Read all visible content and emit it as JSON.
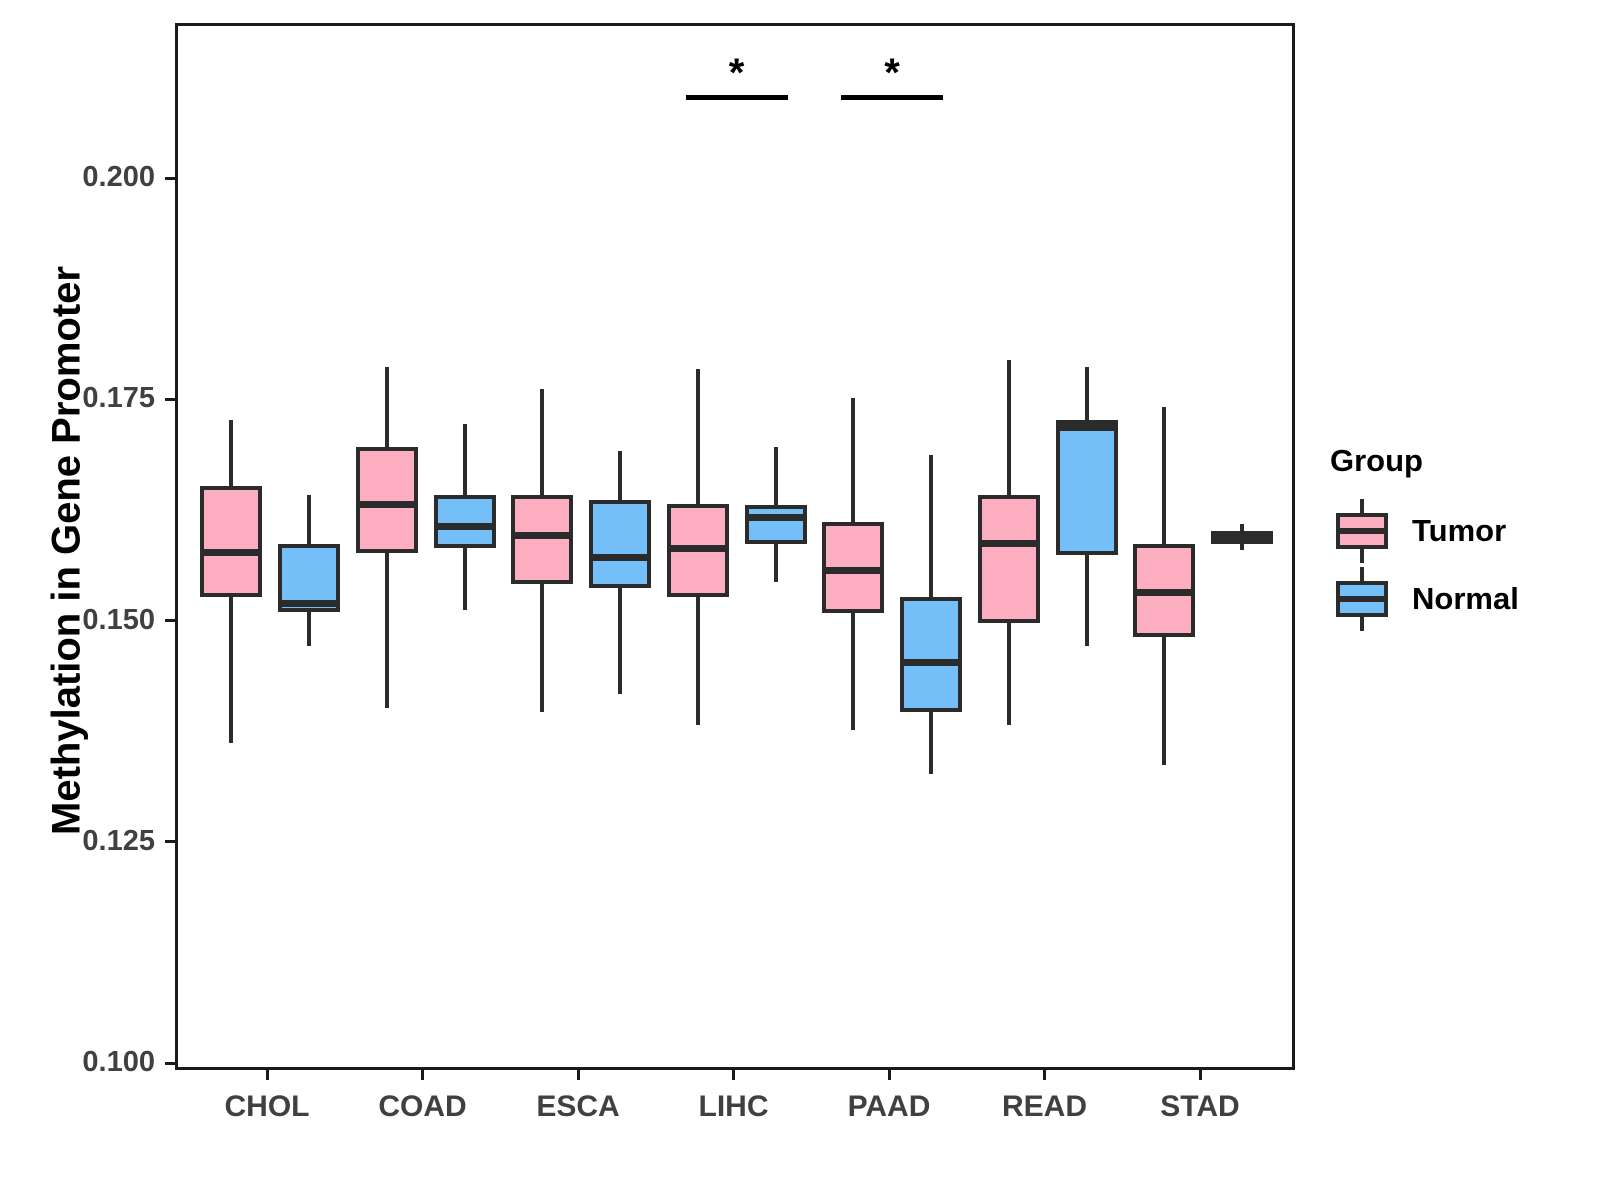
{
  "figure": {
    "title": "",
    "y_axis_title": "Methylation in Gene Promoter",
    "legend": {
      "title": "Group",
      "items": [
        {
          "label": "Tumor",
          "color": "#FCAEC0"
        },
        {
          "label": "Normal",
          "color": "#74BFF8"
        }
      ]
    }
  },
  "colors": {
    "tumor_fill": "#FCAEC0",
    "normal_fill": "#74BFF8",
    "box_border": "#2b2b2b",
    "axis_text": "#404040",
    "panel_border": "#1a1a1a"
  },
  "chart_data": {
    "type": "boxplot",
    "title": "",
    "xlabel": "",
    "ylabel": "Methylation in Gene Promoter",
    "categories": [
      "CHOL",
      "COAD",
      "ESCA",
      "LIHC",
      "PAAD",
      "READ",
      "STAD"
    ],
    "y_ticks": [
      0.1,
      0.125,
      0.15,
      0.175,
      0.2
    ],
    "y_tick_labels": [
      "0.100",
      "0.125",
      "0.150",
      "0.175",
      "0.200"
    ],
    "ylim": [
      0.099,
      0.2175
    ],
    "grid": false,
    "legend_position": "right",
    "series": [
      {
        "name": "Tumor",
        "color": "#FCAEC0",
        "boxes": [
          {
            "category": "CHOL",
            "min": 0.1365,
            "q1": 0.153,
            "median": 0.158,
            "q3": 0.1655,
            "max": 0.173
          },
          {
            "category": "COAD",
            "min": 0.1405,
            "q1": 0.158,
            "median": 0.1635,
            "q3": 0.17,
            "max": 0.179
          },
          {
            "category": "ESCA",
            "min": 0.14,
            "q1": 0.1545,
            "median": 0.16,
            "q3": 0.1645,
            "max": 0.1765
          },
          {
            "category": "LIHC",
            "min": 0.1385,
            "q1": 0.153,
            "median": 0.1585,
            "q3": 0.1635,
            "max": 0.1788
          },
          {
            "category": "PAAD",
            "min": 0.138,
            "q1": 0.1512,
            "median": 0.156,
            "q3": 0.1615,
            "max": 0.1755
          },
          {
            "category": "READ",
            "min": 0.1385,
            "q1": 0.15,
            "median": 0.159,
            "q3": 0.1645,
            "max": 0.1798
          },
          {
            "category": "STAD",
            "min": 0.134,
            "q1": 0.1485,
            "median": 0.1535,
            "q3": 0.159,
            "max": 0.1745
          }
        ]
      },
      {
        "name": "Normal",
        "color": "#74BFF8",
        "boxes": [
          {
            "category": "CHOL",
            "min": 0.1475,
            "q1": 0.1513,
            "median": 0.1523,
            "q3": 0.159,
            "max": 0.1645
          },
          {
            "category": "COAD",
            "min": 0.1515,
            "q1": 0.1585,
            "median": 0.161,
            "q3": 0.1645,
            "max": 0.1725
          },
          {
            "category": "ESCA",
            "min": 0.142,
            "q1": 0.154,
            "median": 0.1575,
            "q3": 0.164,
            "max": 0.1695
          },
          {
            "category": "LIHC",
            "min": 0.1547,
            "q1": 0.159,
            "median": 0.162,
            "q3": 0.1634,
            "max": 0.17
          },
          {
            "category": "PAAD",
            "min": 0.133,
            "q1": 0.14,
            "median": 0.1456,
            "q3": 0.153,
            "max": 0.169
          },
          {
            "category": "READ",
            "min": 0.1475,
            "q1": 0.1577,
            "median": 0.1722,
            "q3": 0.173,
            "max": 0.179
          },
          {
            "category": "STAD",
            "min": 0.1583,
            "q1": 0.159,
            "median": 0.1597,
            "q3": 0.1605,
            "max": 0.1612
          }
        ]
      }
    ],
    "significance_markers": [
      {
        "category": "LIHC",
        "label": "*",
        "bar_y": 0.2097
      },
      {
        "category": "PAAD",
        "label": "*",
        "bar_y": 0.2097
      }
    ]
  }
}
